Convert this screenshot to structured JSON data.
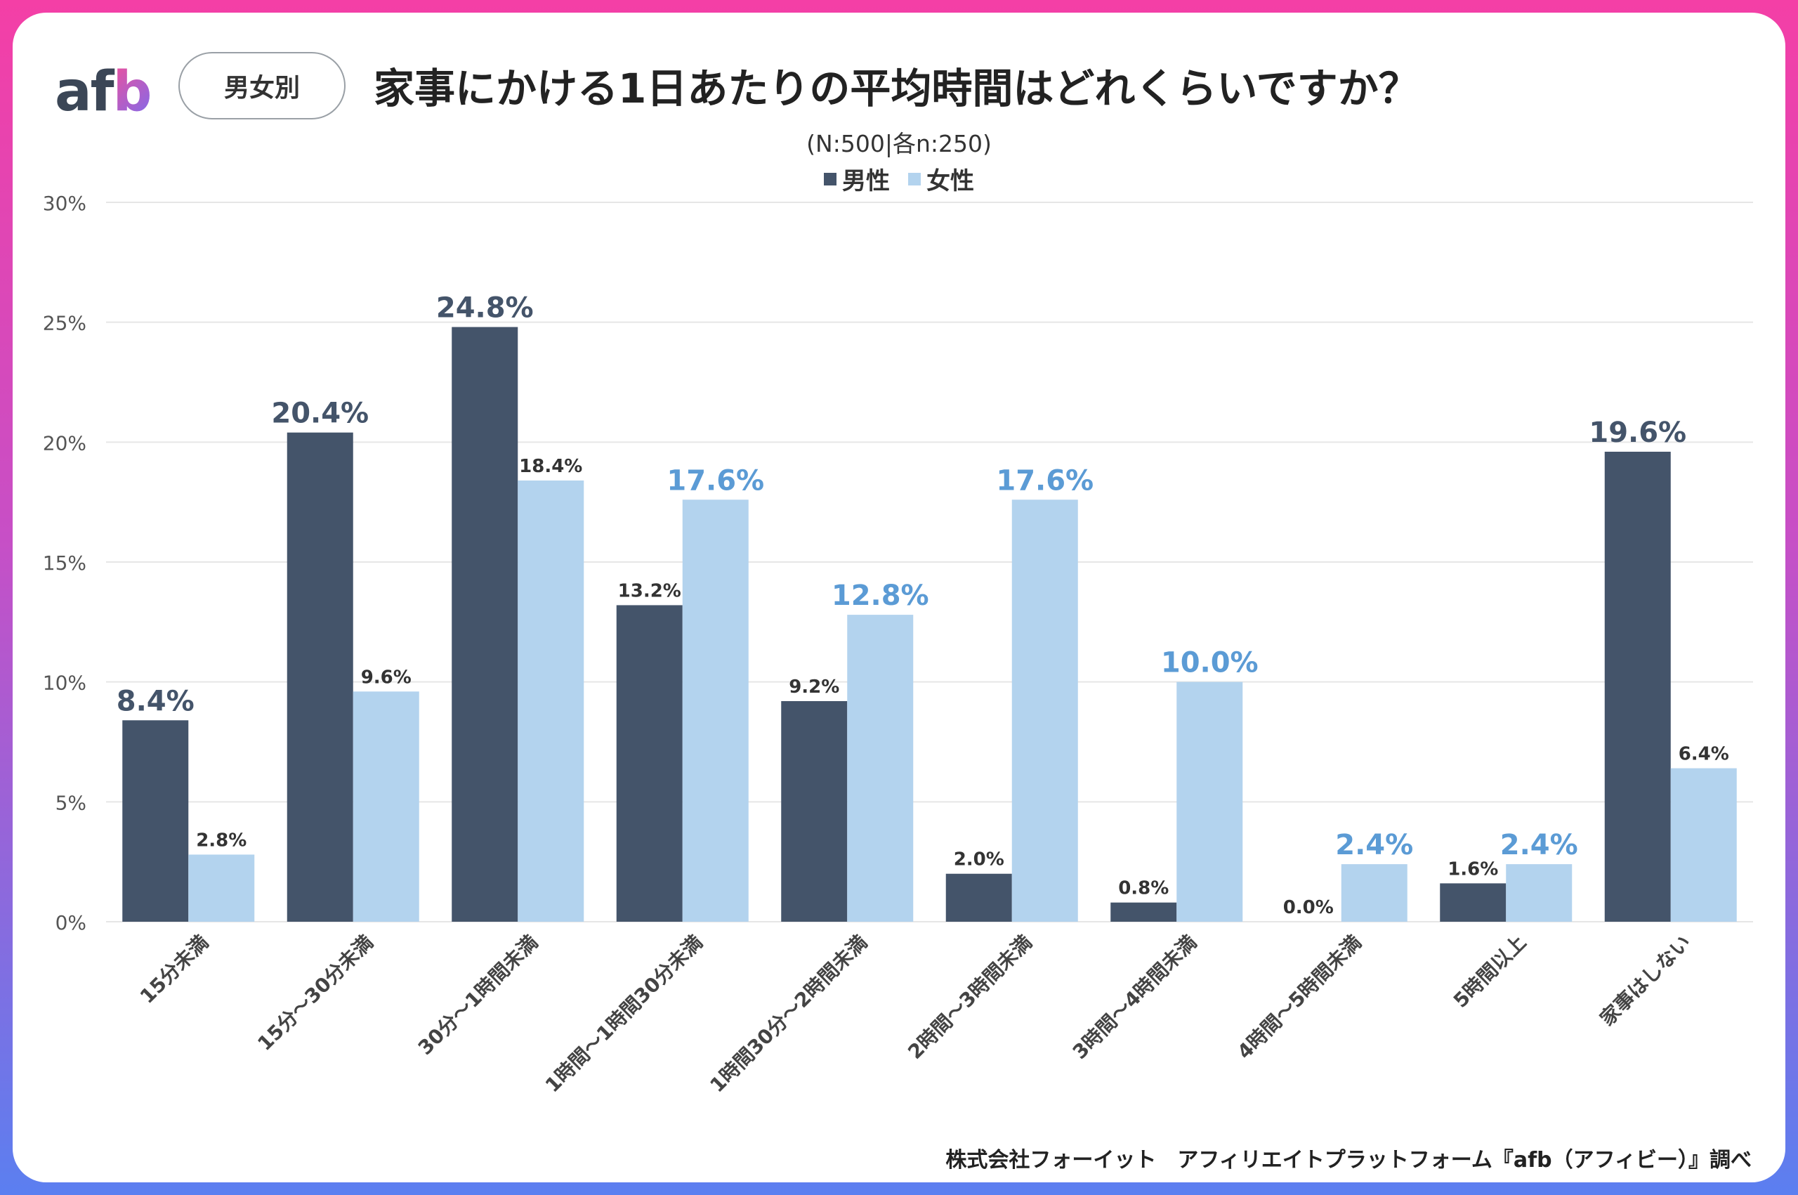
{
  "header": {
    "logo_text": {
      "a": "a",
      "f": "f",
      "b": "b"
    },
    "badge": "男女別",
    "title": "家事にかける1日あたりの平均時間はどれくらいですか？",
    "subtitle": "(N:500|各n:250)"
  },
  "legend": [
    {
      "label": "男性",
      "color": "#44546a"
    },
    {
      "label": "女性",
      "color": "#b3d3ee"
    }
  ],
  "footer": "株式会社フォーイット　アフィリエイトプラットフォーム『afb（アフィビー）』調べ",
  "colors": {
    "male_bar": "#44546a",
    "female_bar": "#b3d3ee",
    "male_highlight_label": "#44546a",
    "female_highlight_label": "#5b9bd5",
    "plain_label": "#333333",
    "grid": "#e6e6e6"
  },
  "chart_data": {
    "type": "bar",
    "title": "家事にかける1日あたりの平均時間はどれくらいですか？",
    "categories": [
      "15分未満",
      "15分～30分未満",
      "30分～1時間未満",
      "1時間～1時間30分未満",
      "1時間30分～2時間未満",
      "2時間～3時間未満",
      "3時間～4時間未満",
      "4時間～5時間未満",
      "5時間以上",
      "家事はしない"
    ],
    "series": [
      {
        "name": "男性",
        "values": [
          8.4,
          20.4,
          24.8,
          13.2,
          9.2,
          2.0,
          0.8,
          0.0,
          1.6,
          19.6
        ],
        "labels": [
          "8.4%",
          "20.4%",
          "24.8%",
          "13.2%",
          "9.2%",
          "2.0%",
          "0.8%",
          "0.0%",
          "1.6%",
          "19.6%"
        ]
      },
      {
        "name": "女性",
        "values": [
          2.8,
          9.6,
          18.4,
          17.6,
          12.8,
          17.6,
          10.0,
          2.4,
          2.4,
          6.4
        ],
        "labels": [
          "2.8%",
          "9.6%",
          "18.4%",
          "17.6%",
          "12.8%",
          "17.6%",
          "10.0%",
          "2.4%",
          "2.4%",
          "6.4%"
        ]
      }
    ],
    "ylim": [
      0,
      30
    ],
    "yticks": [
      0,
      5,
      10,
      15,
      20,
      25,
      30
    ],
    "ytick_labels": [
      "0%",
      "5%",
      "10%",
      "15%",
      "20%",
      "25%",
      "30%"
    ],
    "grid": true,
    "legend_position": "top-center"
  }
}
